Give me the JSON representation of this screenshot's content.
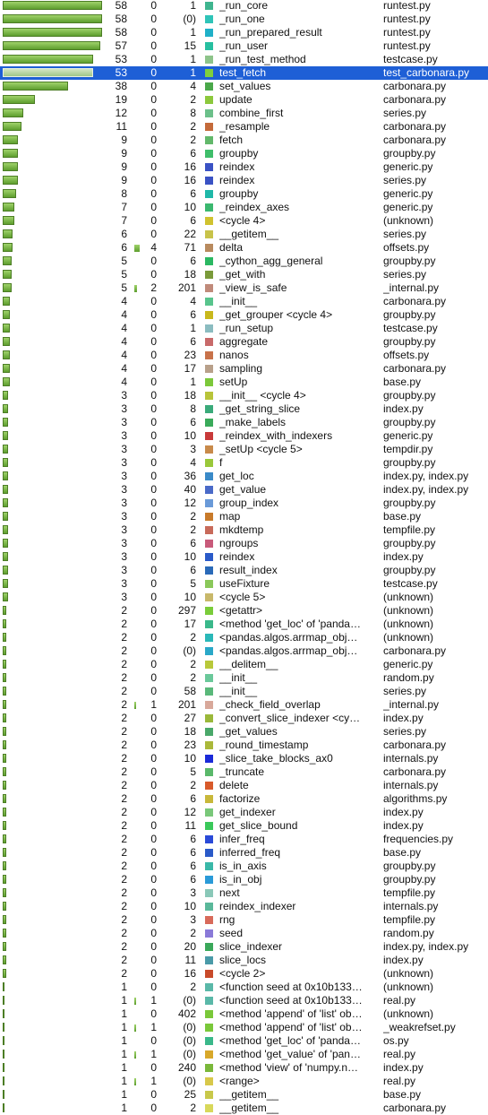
{
  "max_calls": 58,
  "rows": [
    {
      "calls": "58",
      "sub": "0",
      "lines": "1",
      "name": "_run_core",
      "file": "runtest.py",
      "color": "#3fb58f"
    },
    {
      "calls": "58",
      "sub": "0",
      "lines": "(0)",
      "name": "_run_one",
      "file": "runtest.py",
      "color": "#2fc4b8"
    },
    {
      "calls": "58",
      "sub": "0",
      "lines": "1",
      "name": "_run_prepared_result",
      "file": "runtest.py",
      "color": "#20b0c8"
    },
    {
      "calls": "57",
      "sub": "0",
      "lines": "15",
      "name": "_run_user",
      "file": "runtest.py",
      "color": "#27bfa0"
    },
    {
      "calls": "53",
      "sub": "0",
      "lines": "1",
      "name": "_run_test_method",
      "file": "testcase.py",
      "color": "#8dc48a"
    },
    {
      "calls": "53",
      "sub": "0",
      "lines": "1",
      "name": "test_fetch",
      "file": "test_carbonara.py",
      "color": "#7fcf3c",
      "selected": true
    },
    {
      "calls": "38",
      "sub": "0",
      "lines": "4",
      "name": "set_values",
      "file": "carbonara.py",
      "color": "#4aa84a"
    },
    {
      "calls": "19",
      "sub": "0",
      "lines": "2",
      "name": "update",
      "file": "carbonara.py",
      "color": "#8cc83c"
    },
    {
      "calls": "12",
      "sub": "0",
      "lines": "8",
      "name": "combine_first",
      "file": "series.py",
      "color": "#6cc08a"
    },
    {
      "calls": "11",
      "sub": "0",
      "lines": "2",
      "name": "_resample",
      "file": "carbonara.py",
      "color": "#c46a3a"
    },
    {
      "calls": "9",
      "sub": "0",
      "lines": "2",
      "name": "fetch",
      "file": "carbonara.py",
      "color": "#62b86a"
    },
    {
      "calls": "9",
      "sub": "0",
      "lines": "6",
      "name": "groupby",
      "file": "groupby.py",
      "color": "#3fbe6a"
    },
    {
      "calls": "9",
      "sub": "0",
      "lines": "16",
      "name": "reindex",
      "file": "generic.py",
      "color": "#3a52c4"
    },
    {
      "calls": "9",
      "sub": "0",
      "lines": "16",
      "name": "reindex",
      "file": "series.py",
      "color": "#3a52c4"
    },
    {
      "calls": "8",
      "sub": "0",
      "lines": "6",
      "name": "groupby",
      "file": "generic.py",
      "color": "#1fb8a8"
    },
    {
      "calls": "7",
      "sub": "0",
      "lines": "10",
      "name": "_reindex_axes",
      "file": "generic.py",
      "color": "#3bb86f"
    },
    {
      "calls": "7",
      "sub": "0",
      "lines": "6",
      "name": "<cycle 4>",
      "file": "(unknown)",
      "color": "#d0c22f"
    },
    {
      "calls": "6",
      "sub": "0",
      "lines": "22",
      "name": "__getitem__",
      "file": "series.py",
      "color": "#c8c34a"
    },
    {
      "calls": "6",
      "sub": "4",
      "lines": "71",
      "name": "delta",
      "file": "offsets.py",
      "color": "#b88a5e",
      "subbar": 6
    },
    {
      "calls": "5",
      "sub": "0",
      "lines": "6",
      "name": "_cython_agg_general",
      "file": "groupby.py",
      "color": "#2bb862"
    },
    {
      "calls": "5",
      "sub": "0",
      "lines": "18",
      "name": "_get_with",
      "file": "series.py",
      "color": "#7a9a3a"
    },
    {
      "calls": "5",
      "sub": "2",
      "lines": "201",
      "name": "_view_is_safe",
      "file": "_internal.py",
      "color": "#c08a7a",
      "subbar": 3
    },
    {
      "calls": "4",
      "sub": "0",
      "lines": "4",
      "name": "__init__",
      "file": "carbonara.py",
      "color": "#58c48c"
    },
    {
      "calls": "4",
      "sub": "0",
      "lines": "6",
      "name": "_get_grouper <cycle 4>",
      "file": "groupby.py",
      "color": "#c8b81c"
    },
    {
      "calls": "4",
      "sub": "0",
      "lines": "1",
      "name": "_run_setup",
      "file": "testcase.py",
      "color": "#8bbcc0"
    },
    {
      "calls": "4",
      "sub": "0",
      "lines": "6",
      "name": "aggregate",
      "file": "groupby.py",
      "color": "#c86a6a"
    },
    {
      "calls": "4",
      "sub": "0",
      "lines": "23",
      "name": "nanos",
      "file": "offsets.py",
      "color": "#c8724a"
    },
    {
      "calls": "4",
      "sub": "0",
      "lines": "17",
      "name": "sampling",
      "file": "carbonara.py",
      "color": "#b8a08a"
    },
    {
      "calls": "4",
      "sub": "0",
      "lines": "1",
      "name": "setUp",
      "file": "base.py",
      "color": "#7cc83a"
    },
    {
      "calls": "3",
      "sub": "0",
      "lines": "18",
      "name": "__init__ <cycle 4>",
      "file": "groupby.py",
      "color": "#b8c43a"
    },
    {
      "calls": "3",
      "sub": "0",
      "lines": "8",
      "name": "_get_string_slice",
      "file": "index.py",
      "color": "#3aaa7a"
    },
    {
      "calls": "3",
      "sub": "0",
      "lines": "6",
      "name": "_make_labels",
      "file": "groupby.py",
      "color": "#3aaa5a"
    },
    {
      "calls": "3",
      "sub": "0",
      "lines": "10",
      "name": "_reindex_with_indexers",
      "file": "generic.py",
      "color": "#c83a3a"
    },
    {
      "calls": "3",
      "sub": "0",
      "lines": "3",
      "name": "_setUp <cycle 5>",
      "file": "tempdir.py",
      "color": "#c88a4a"
    },
    {
      "calls": "3",
      "sub": "0",
      "lines": "4",
      "name": "f",
      "file": "groupby.py",
      "color": "#9ac83a"
    },
    {
      "calls": "3",
      "sub": "0",
      "lines": "36",
      "name": "get_loc",
      "file": "index.py, index.py",
      "color": "#3a8ac8"
    },
    {
      "calls": "3",
      "sub": "0",
      "lines": "40",
      "name": "get_value",
      "file": "index.py, index.py",
      "color": "#4a6ac8"
    },
    {
      "calls": "3",
      "sub": "0",
      "lines": "12",
      "name": "group_index",
      "file": "groupby.py",
      "color": "#6a9ad8"
    },
    {
      "calls": "3",
      "sub": "0",
      "lines": "2",
      "name": "map",
      "file": "base.py",
      "color": "#c87a2a"
    },
    {
      "calls": "3",
      "sub": "0",
      "lines": "2",
      "name": "mkdtemp",
      "file": "tempfile.py",
      "color": "#c86a5a"
    },
    {
      "calls": "3",
      "sub": "0",
      "lines": "6",
      "name": "ngroups",
      "file": "groupby.py",
      "color": "#c85a7a"
    },
    {
      "calls": "3",
      "sub": "0",
      "lines": "10",
      "name": "reindex",
      "file": "index.py",
      "color": "#2a5ac8"
    },
    {
      "calls": "3",
      "sub": "0",
      "lines": "6",
      "name": "result_index",
      "file": "groupby.py",
      "color": "#2a6ab8"
    },
    {
      "calls": "3",
      "sub": "0",
      "lines": "5",
      "name": "useFixture",
      "file": "testcase.py",
      "color": "#8ac85a"
    },
    {
      "calls": "3",
      "sub": "0",
      "lines": "10",
      "name": "<cycle 5>",
      "file": "(unknown)",
      "color": "#c8b86a"
    },
    {
      "calls": "2",
      "sub": "0",
      "lines": "297",
      "name": "<getattr>",
      "file": "(unknown)",
      "color": "#7acc3a"
    },
    {
      "calls": "2",
      "sub": "0",
      "lines": "17",
      "name": "<method 'get_loc' of 'panda…",
      "file": "(unknown)",
      "color": "#3ab88a"
    },
    {
      "calls": "2",
      "sub": "0",
      "lines": "2",
      "name": "<pandas.algos.arrmap_obj…",
      "file": "(unknown)",
      "color": "#2ab8b8"
    },
    {
      "calls": "2",
      "sub": "0",
      "lines": "(0)",
      "name": "<pandas.algos.arrmap_obj…",
      "file": "carbonara.py",
      "color": "#2aa8c8"
    },
    {
      "calls": "2",
      "sub": "0",
      "lines": "2",
      "name": "__delitem__",
      "file": "generic.py",
      "color": "#b8c83a"
    },
    {
      "calls": "2",
      "sub": "0",
      "lines": "2",
      "name": "__init__",
      "file": "random.py",
      "color": "#6ac89a"
    },
    {
      "calls": "2",
      "sub": "0",
      "lines": "58",
      "name": "__init__",
      "file": "series.py",
      "color": "#5ab87a"
    },
    {
      "calls": "2",
      "sub": "1",
      "lines": "201",
      "name": "_check_field_overlap",
      "file": "_internal.py",
      "color": "#d8a89a",
      "subbar": 2
    },
    {
      "calls": "2",
      "sub": "0",
      "lines": "27",
      "name": "_convert_slice_indexer <cy…",
      "file": "index.py",
      "color": "#9ab83a"
    },
    {
      "calls": "2",
      "sub": "0",
      "lines": "18",
      "name": "_get_values",
      "file": "series.py",
      "color": "#4aa86a"
    },
    {
      "calls": "2",
      "sub": "0",
      "lines": "23",
      "name": "_round_timestamp",
      "file": "carbonara.py",
      "color": "#aab83a"
    },
    {
      "calls": "2",
      "sub": "0",
      "lines": "10",
      "name": "_slice_take_blocks_ax0",
      "file": "internals.py",
      "color": "#1a2ad8"
    },
    {
      "calls": "2",
      "sub": "0",
      "lines": "5",
      "name": "_truncate",
      "file": "carbonara.py",
      "color": "#5ab86a"
    },
    {
      "calls": "2",
      "sub": "0",
      "lines": "2",
      "name": "delete",
      "file": "internals.py",
      "color": "#d85a2a"
    },
    {
      "calls": "2",
      "sub": "0",
      "lines": "6",
      "name": "factorize",
      "file": "algorithms.py",
      "color": "#c8b83a"
    },
    {
      "calls": "2",
      "sub": "0",
      "lines": "12",
      "name": "get_indexer",
      "file": "index.py",
      "color": "#7ac87a"
    },
    {
      "calls": "2",
      "sub": "0",
      "lines": "11",
      "name": "get_slice_bound",
      "file": "index.py",
      "color": "#3ac85a"
    },
    {
      "calls": "2",
      "sub": "0",
      "lines": "6",
      "name": "infer_freq",
      "file": "frequencies.py",
      "color": "#2a4ad8"
    },
    {
      "calls": "2",
      "sub": "0",
      "lines": "6",
      "name": "inferred_freq",
      "file": "base.py",
      "color": "#2a5ac8"
    },
    {
      "calls": "2",
      "sub": "0",
      "lines": "6",
      "name": "is_in_axis",
      "file": "groupby.py",
      "color": "#3ab8a8"
    },
    {
      "calls": "2",
      "sub": "0",
      "lines": "6",
      "name": "is_in_obj",
      "file": "groupby.py",
      "color": "#2a9ad8"
    },
    {
      "calls": "2",
      "sub": "0",
      "lines": "3",
      "name": "next",
      "file": "tempfile.py",
      "color": "#8ac8b8"
    },
    {
      "calls": "2",
      "sub": "0",
      "lines": "10",
      "name": "reindex_indexer",
      "file": "internals.py",
      "color": "#5ab89a"
    },
    {
      "calls": "2",
      "sub": "0",
      "lines": "3",
      "name": "rng",
      "file": "tempfile.py",
      "color": "#d86a5a"
    },
    {
      "calls": "2",
      "sub": "0",
      "lines": "2",
      "name": "seed",
      "file": "random.py",
      "color": "#8a7ad8"
    },
    {
      "calls": "2",
      "sub": "0",
      "lines": "20",
      "name": "slice_indexer",
      "file": "index.py, index.py",
      "color": "#3aa85a"
    },
    {
      "calls": "2",
      "sub": "0",
      "lines": "11",
      "name": "slice_locs",
      "file": "index.py",
      "color": "#4a9aa8"
    },
    {
      "calls": "2",
      "sub": "0",
      "lines": "16",
      "name": "<cycle 2>",
      "file": "(unknown)",
      "color": "#c84a2a"
    },
    {
      "calls": "1",
      "sub": "0",
      "lines": "2",
      "name": "<function seed at 0x10b133…",
      "file": "(unknown)",
      "color": "#5ab8a8"
    },
    {
      "calls": "1",
      "sub": "1",
      "lines": "(0)",
      "name": "<function seed at 0x10b133…",
      "file": "real.py",
      "color": "#5ab8a8",
      "subbar": 2
    },
    {
      "calls": "1",
      "sub": "0",
      "lines": "402",
      "name": "<method 'append' of 'list' ob…",
      "file": "(unknown)",
      "color": "#7ac83a"
    },
    {
      "calls": "1",
      "sub": "1",
      "lines": "(0)",
      "name": "<method 'append' of 'list' ob…",
      "file": "_weakrefset.py",
      "color": "#7ac83a",
      "subbar": 2
    },
    {
      "calls": "1",
      "sub": "0",
      "lines": "(0)",
      "name": "<method 'get_loc' of 'panda…",
      "file": "os.py",
      "color": "#3ab88a"
    },
    {
      "calls": "1",
      "sub": "1",
      "lines": "(0)",
      "name": "<method 'get_value' of 'pan…",
      "file": "real.py",
      "color": "#d8a82a",
      "subbar": 2
    },
    {
      "calls": "1",
      "sub": "0",
      "lines": "240",
      "name": "<method 'view' of 'numpy.n…",
      "file": "index.py",
      "color": "#7ab83a"
    },
    {
      "calls": "1",
      "sub": "1",
      "lines": "(0)",
      "name": "<range>",
      "file": "real.py",
      "color": "#d8c84a",
      "subbar": 2
    },
    {
      "calls": "1",
      "sub": "0",
      "lines": "25",
      "name": "__getitem__",
      "file": "base.py",
      "color": "#c8c84a"
    },
    {
      "calls": "1",
      "sub": "0",
      "lines": "2",
      "name": "__getitem__",
      "file": "carbonara.py",
      "color": "#d8d85a"
    }
  ]
}
